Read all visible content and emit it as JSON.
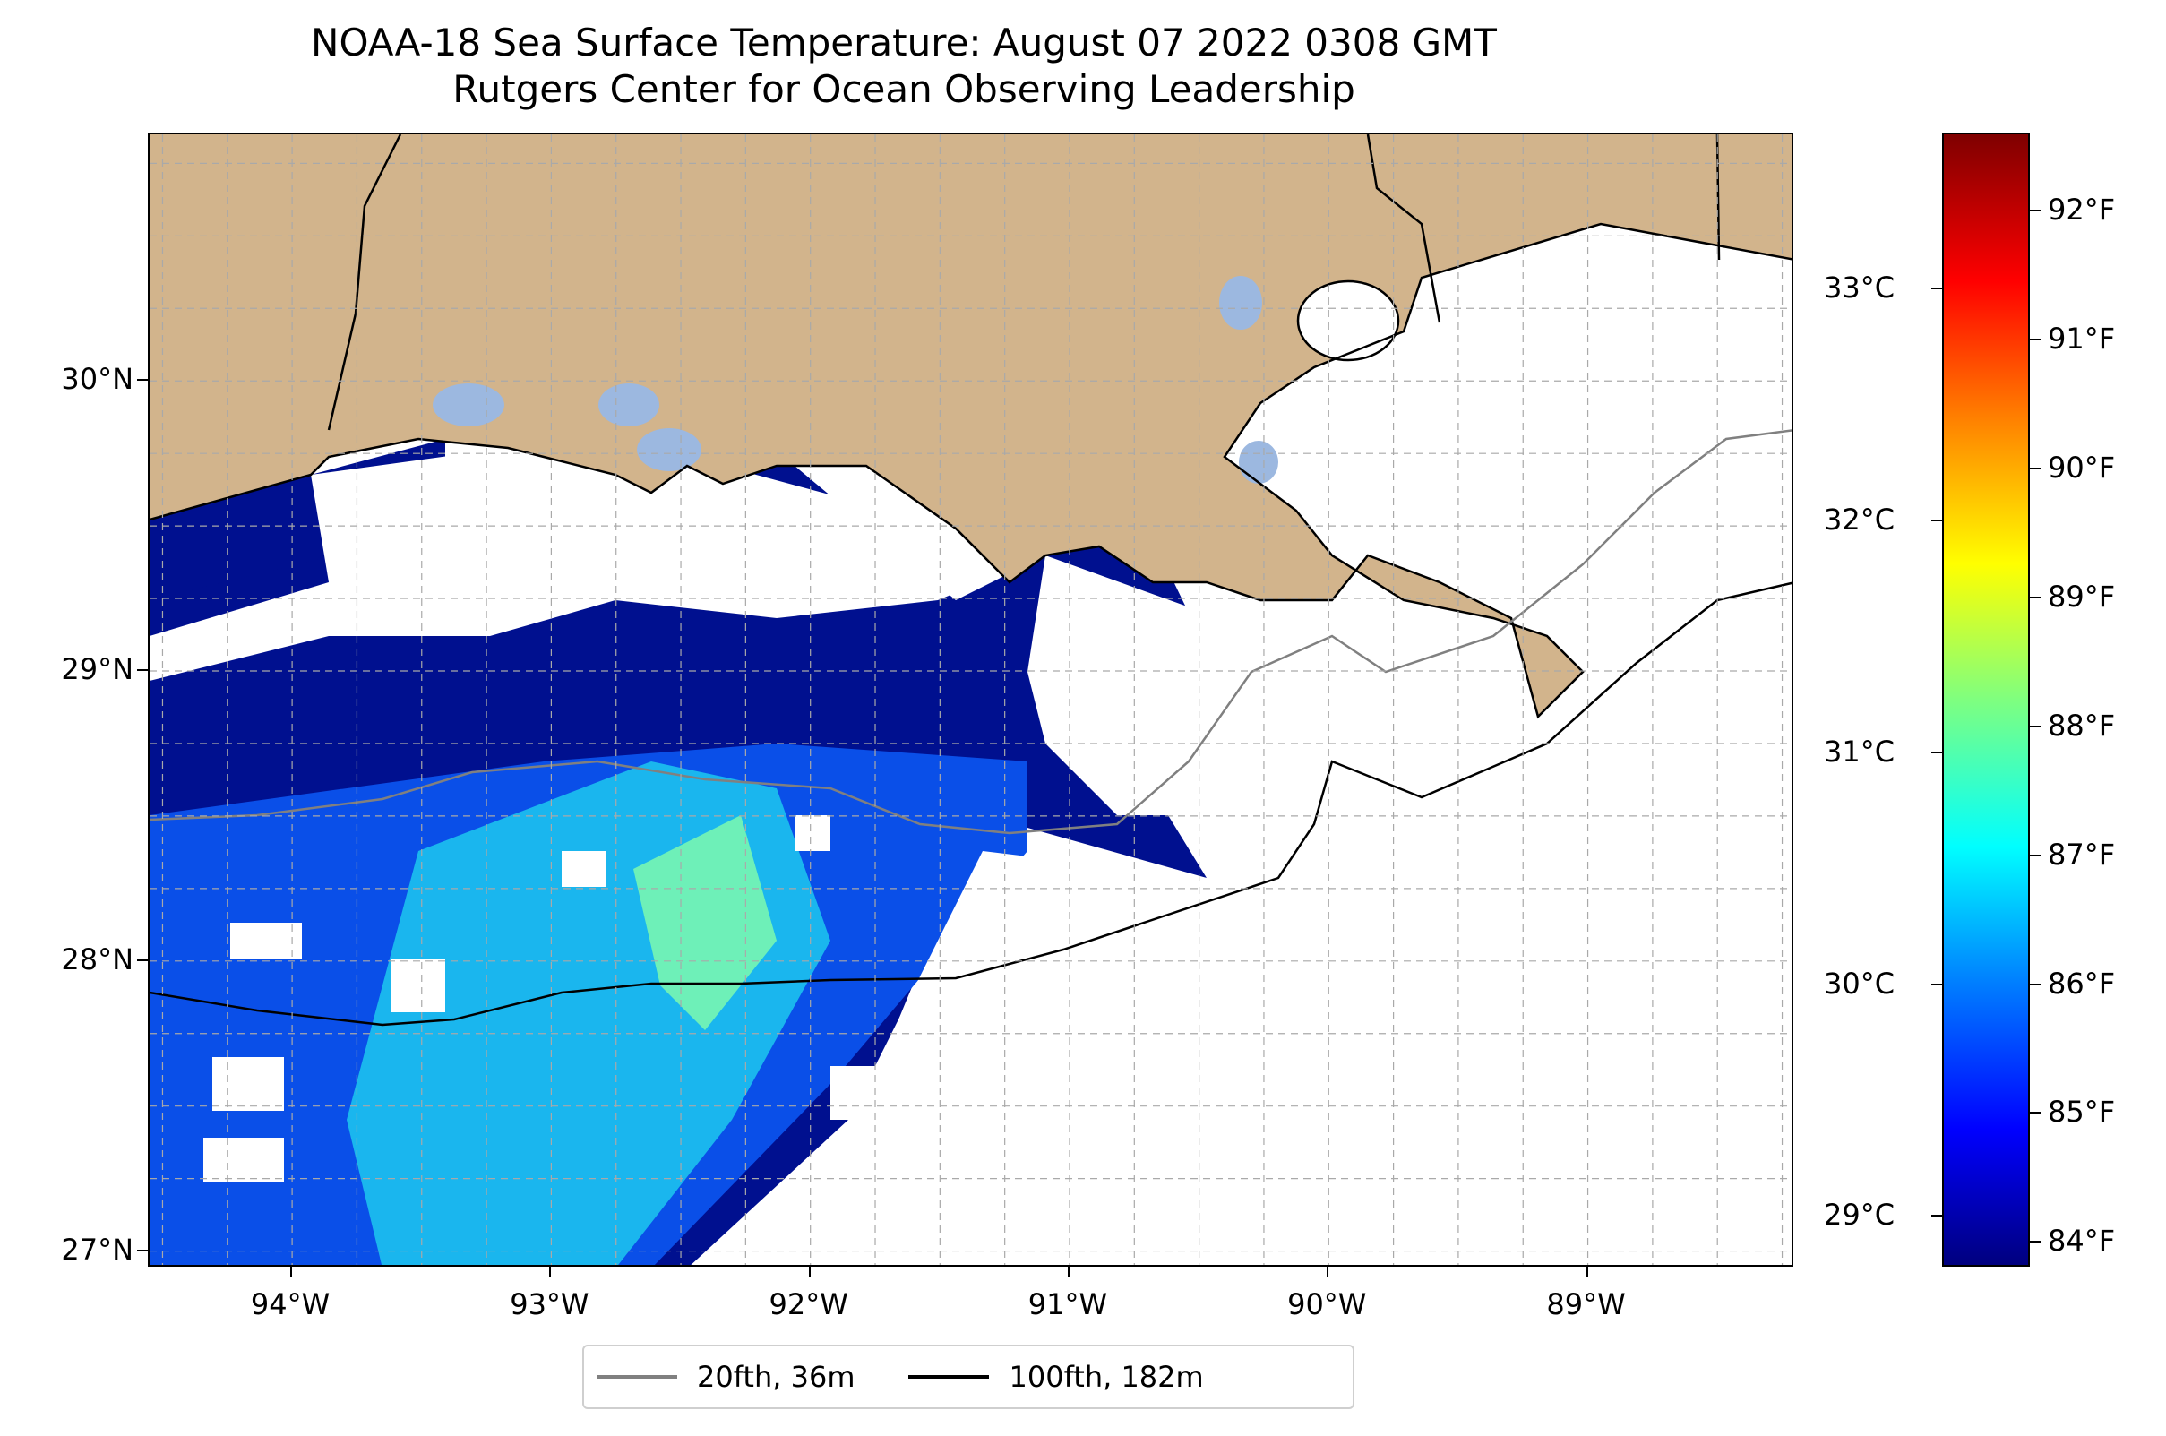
{
  "title": {
    "line1": "NOAA-18 Sea Surface Temperature: August 07 2022 0308 GMT",
    "line2": "Rutgers Center for Ocean Observing Leadership"
  },
  "map": {
    "lat_range": [
      26.94,
      30.85
    ],
    "lon_range": [
      -94.55,
      -88.2
    ],
    "lat_ticks": [
      {
        "value": 27,
        "label": "27°N"
      },
      {
        "value": 28,
        "label": "28°N"
      },
      {
        "value": 29,
        "label": "29°N"
      },
      {
        "value": 30,
        "label": "30°N"
      }
    ],
    "lon_ticks": [
      {
        "value": -94,
        "label": "94°W"
      },
      {
        "value": -93,
        "label": "93°W"
      },
      {
        "value": -92,
        "label": "92°W"
      },
      {
        "value": -91,
        "label": "91°W"
      },
      {
        "value": -90,
        "label": "90°W"
      },
      {
        "value": -89,
        "label": "89°W"
      }
    ],
    "grid": "dashed, every 0.25°",
    "colors": {
      "land": "#d2b48c",
      "lakes": "#9cb8e0",
      "no_data": "#ffffff",
      "isobath_20fth": "#808080",
      "isobath_100fth": "#000000"
    }
  },
  "legend": {
    "placement": "bottom-center",
    "entries": [
      {
        "label": "20fth, 36m",
        "color": "#808080"
      },
      {
        "label": "100fth, 182m",
        "color": "#000000"
      }
    ]
  },
  "colorbar": {
    "colormap": "jet",
    "range_f": [
      83.8,
      92.6
    ],
    "fahrenheit_ticks": [
      {
        "value": 84,
        "label": "84°F"
      },
      {
        "value": 85,
        "label": "85°F"
      },
      {
        "value": 86,
        "label": "86°F"
      },
      {
        "value": 87,
        "label": "87°F"
      },
      {
        "value": 88,
        "label": "88°F"
      },
      {
        "value": 89,
        "label": "89°F"
      },
      {
        "value": 90,
        "label": "90°F"
      },
      {
        "value": 91,
        "label": "91°F"
      },
      {
        "value": 92,
        "label": "92°F"
      }
    ],
    "celsius_ticks": [
      {
        "value": 29,
        "label": "29°C"
      },
      {
        "value": 30,
        "label": "30°C"
      },
      {
        "value": 31,
        "label": "31°C"
      },
      {
        "value": 32,
        "label": "32°C"
      },
      {
        "value": 33,
        "label": "33°C"
      }
    ]
  }
}
